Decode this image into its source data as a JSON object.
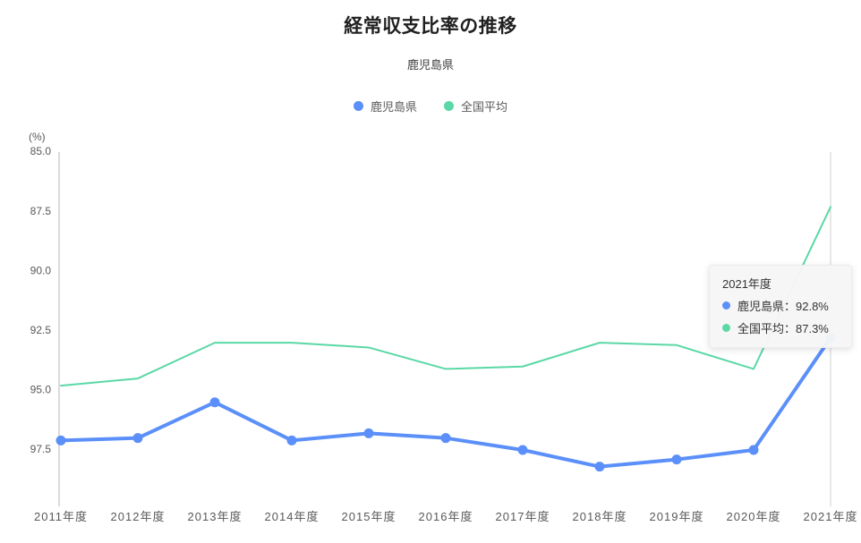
{
  "title": "経常収支比率の推移",
  "subtitle": "鹿児島県",
  "y_axis_unit": "(%)",
  "colors": {
    "kagoshima": "#5B8FF9",
    "national": "#5AD8A6",
    "axis": "#b5b5b5",
    "tick_text": "#595959",
    "crosshair": "#cfcfcf"
  },
  "legend": [
    {
      "label": "鹿児島県",
      "color": "#5B8FF9"
    },
    {
      "label": "全国平均",
      "color": "#5AD8A6"
    }
  ],
  "chart_data": {
    "type": "line",
    "categories": [
      "2011年度",
      "2012年度",
      "2013年度",
      "2014年度",
      "2015年度",
      "2016年度",
      "2017年度",
      "2018年度",
      "2019年度",
      "2020年度",
      "2021年度"
    ],
    "series": [
      {
        "name": "鹿児島県",
        "color": "#5B8FF9",
        "line_width": 4,
        "point_radius": 5.5,
        "values": [
          97.1,
          97.0,
          95.5,
          97.1,
          96.8,
          97.0,
          97.5,
          98.2,
          97.9,
          97.5,
          92.8
        ]
      },
      {
        "name": "全国平均",
        "color": "#5AD8A6",
        "line_width": 2,
        "point_radius": 0,
        "values": [
          94.8,
          94.5,
          93.0,
          93.0,
          93.2,
          94.1,
          94.0,
          93.0,
          93.1,
          94.1,
          87.3
        ]
      }
    ],
    "y_ticks": [
      "85.0",
      "87.5",
      "90.0",
      "92.5",
      "95.0",
      "97.5"
    ],
    "y_tick_values": [
      85.0,
      87.5,
      90.0,
      92.5,
      95.0,
      97.5
    ],
    "ylim": [
      85,
      100
    ],
    "y_inverted": true,
    "grid": false,
    "legend_position": "top",
    "crosshair_category_index": 10
  },
  "tooltip": {
    "title": "2021年度",
    "items": [
      {
        "label": "鹿児島県",
        "value": "92.8%",
        "text": "鹿児島県：92.8%",
        "color": "#5B8FF9"
      },
      {
        "label": "全国平均",
        "value": "87.3%",
        "text": "全国平均：87.3%",
        "color": "#5AD8A6"
      }
    ]
  }
}
